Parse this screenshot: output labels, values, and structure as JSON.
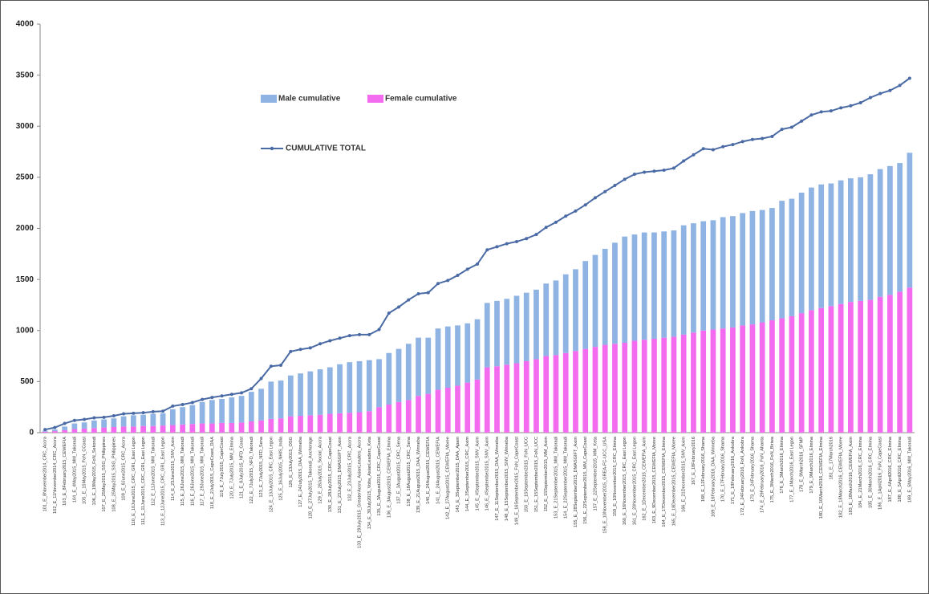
{
  "chart_data": {
    "type": "bar",
    "stacked": true,
    "categories": [
      "101_E_8November2014_CRC_Accra",
      "102_E_11November2014_CRC_Accra",
      "103_E_8February2015_CEWEFIA",
      "104_E_4May2015_MM_Takoradi",
      "105_E_15May2015_FoN_CCoast",
      "106_E_19May2015_FoN_Sekondi",
      "107_E_25May2015_SSG_Philippines",
      "108_E_25May2015_SSG_Philippines",
      "109_E_8June2015_CRC_Accra",
      "110_E_10June2015_CRC_GRL_East Legon",
      "111_E_11June2015_CRC_GRL_East Legon",
      "112_E_11June2015_MM_Takoradi",
      "113_E_12June2015_CRC_GRL_East Legon",
      "114_E_23June2015_SNV_Axim",
      "115_E_26June2015_MM_Takoradi",
      "116_E_26June2015_MM_Takoradi",
      "117_E_29June2015_MM_Takoradi",
      "118_E_2July2015_CapeCoast_DAA",
      "119_E_7July2015_CapeCoast",
      "120_E_7July2015_MM_Elmina",
      "121_E_8July2015_NFD_Coast",
      "122_E_7July2015_NFD_Takoradi",
      "123_E_7July2015_NFD_Sena",
      "124_E_13July2015_CRC_East Legon",
      "125_E_16July2015_NHIS_India",
      "126_E_13July2015_OSG",
      "127_E_24July2015_DAA_Winneba",
      "128_E_27July2015_Takoradi_Anchorage",
      "129_E_28July2015_Social_Accra",
      "130_E_28July2015_CRC_CapeCoast",
      "131_E_23July2015_DMASGIFT_Axim",
      "132_E_23July2015_CRC_Accra",
      "133_E_29July2015_GreaterAccra_AsianLeaders_Accra",
      "134_E_30July2015_Volta_AsianLeaders_Keta",
      "135_E_3August2015_CRC_CapeCoast",
      "136_E_3August2015_CEWEFIA_Elmina",
      "137_E_3August2015_CRC_Sena",
      "138_E_18August2015_CRC_Sena",
      "139_E_21August2015_DAA_Winneba",
      "140_E_24August2015_CEWEFIA",
      "141_E_24August2015_CEWEFIA",
      "142_E_27August2015_CEWEFIA_Moree",
      "143_E_3September2015_DAA_Apam",
      "144_E_3September2015_CRC_Axim",
      "145_E_4September2015_SNV_Axim",
      "146_E_4September2015_SNV_Axim",
      "147_E_11September2015_DAA_Winneba",
      "148_E_15September2015_SNV_Winneba",
      "149_E_16September2015_FoN_CapeCoast",
      "150_E_15September2015_FoN_UCC",
      "151_E_15September2015_FoN_UCC",
      "152_E_15September2015_MM_Axim",
      "153_E_21September2015_MM_Takoradi",
      "154_E_22September2015_MM_Takoradi",
      "155_E_28September2015_DMASGIFT_Axim",
      "156_E_22September2015_MM_CapeCoast",
      "157_E_22September2015_MM_Keta",
      "158_E_10November2015_GREA-FC-UCC_USA",
      "159_E_10November2015_CRC_Elmina",
      "160_E_16November2015_CRC_East Legon",
      "161_E_20November2015_CRC_East Legon",
      "162_E_1December2015_CEWEFIA_Axim",
      "163_E_9December2015_CEWEFIA_Moree",
      "164_E_17December2015_CEWEFIA_Elmina",
      "165_E_18December2015_CEWEFIA_Moree",
      "166_E_21December2015_SNV_Axim",
      "167_E_18February2016",
      "168_E_12February2016_Shama",
      "169_E_16February2016_DAA_Winneba",
      "170_E_17February2016_Shama",
      "171_E_18February2016_Ankobra",
      "172_E_24February2016_FoN_Ankobra",
      "173_E_24February2016_Shama",
      "174_E_29February2016_FoN_Ahanta",
      "175_E_3March2016_FoN_Biriwa",
      "176_E_3March2016_Elmina",
      "177_E_4March2016_East Legon",
      "178_E_9March2016_SFMP",
      "179_E_9March2016_Elmina",
      "180_E_10March2016_CEWEFIA_Elmina",
      "181_E_17March2016",
      "182_E_18March2016_CEWEFIA_Moree",
      "183_E_18March2016_CEWEFIA_Axim",
      "184_E_21March2016_CRC_Elmina",
      "185_E_30March2016_CRC_Elmina",
      "186_E_1April2016_FoN_CapeCoast",
      "187_E_4April2016_CRC_Elmina",
      "188_E_5April2016_CRC_Elmina",
      "189_E_5May2016_MM_Takoradi"
    ],
    "series": [
      {
        "name": "Male cumulative",
        "type": "bar",
        "color": "#8fb4e3",
        "values": [
          10,
          15,
          35,
          55,
          60,
          75,
          80,
          85,
          100,
          110,
          110,
          120,
          120,
          155,
          170,
          185,
          210,
          230,
          235,
          250,
          260,
          290,
          310,
          365,
          370,
          400,
          415,
          430,
          445,
          455,
          480,
          495,
          500,
          500,
          470,
          505,
          520,
          550,
          570,
          550,
          600,
          600,
          590,
          580,
          590,
          630,
          640,
          645,
          660,
          670,
          680,
          710,
          730,
          770,
          800,
          860,
          900,
          940,
          990,
          1040,
          1040,
          1050,
          1040,
          1040,
          1040,
          1070,
          1070,
          1070,
          1070,
          1090,
          1090,
          1100,
          1110,
          1100,
          1100,
          1150,
          1150,
          1180,
          1200,
          1210,
          1200,
          1210,
          1210,
          1210,
          1230,
          1250,
          1260,
          1260,
          1320
        ]
      },
      {
        "name": "Female cumulative",
        "type": "bar",
        "color": "#f36cf0",
        "values": [
          10,
          15,
          25,
          35,
          40,
          45,
          50,
          55,
          60,
          60,
          65,
          65,
          70,
          75,
          80,
          85,
          90,
          90,
          95,
          95,
          100,
          110,
          120,
          135,
          140,
          160,
          165,
          170,
          175,
          185,
          190,
          195,
          200,
          210,
          250,
          275,
          300,
          320,
          360,
          380,
          420,
          440,
          460,
          490,
          520,
          640,
          650,
          665,
          680,
          700,
          720,
          750,
          760,
          780,
          800,
          820,
          840,
          860,
          870,
          880,
          900,
          910,
          920,
          930,
          940,
          960,
          980,
          1000,
          1010,
          1020,
          1030,
          1050,
          1060,
          1080,
          1100,
          1120,
          1140,
          1170,
          1200,
          1220,
          1240,
          1260,
          1280,
          1290,
          1300,
          1330,
          1350,
          1380,
          1420
        ]
      },
      {
        "name": "CUMULATIVE TOTAL",
        "type": "line",
        "color": "#4a6aa5",
        "values": [
          30,
          50,
          90,
          120,
          130,
          145,
          150,
          165,
          185,
          190,
          195,
          205,
          210,
          260,
          275,
          295,
          325,
          345,
          360,
          375,
          390,
          430,
          530,
          650,
          660,
          795,
          815,
          830,
          870,
          900,
          925,
          950,
          960,
          960,
          1010,
          1170,
          1230,
          1300,
          1360,
          1370,
          1460,
          1490,
          1540,
          1600,
          1650,
          1790,
          1820,
          1850,
          1870,
          1900,
          1940,
          2010,
          2060,
          2120,
          2170,
          2230,
          2300,
          2360,
          2420,
          2480,
          2530,
          2550,
          2560,
          2570,
          2590,
          2660,
          2720,
          2780,
          2770,
          2800,
          2820,
          2850,
          2870,
          2880,
          2900,
          2970,
          2990,
          3050,
          3110,
          3140,
          3150,
          3180,
          3200,
          3230,
          3280,
          3320,
          3350,
          3400,
          3470
        ]
      }
    ],
    "ylim": [
      0,
      4000
    ],
    "yticks": [
      0,
      500,
      1000,
      1500,
      2000,
      2500,
      3000,
      3500,
      4000
    ],
    "grid": false
  }
}
